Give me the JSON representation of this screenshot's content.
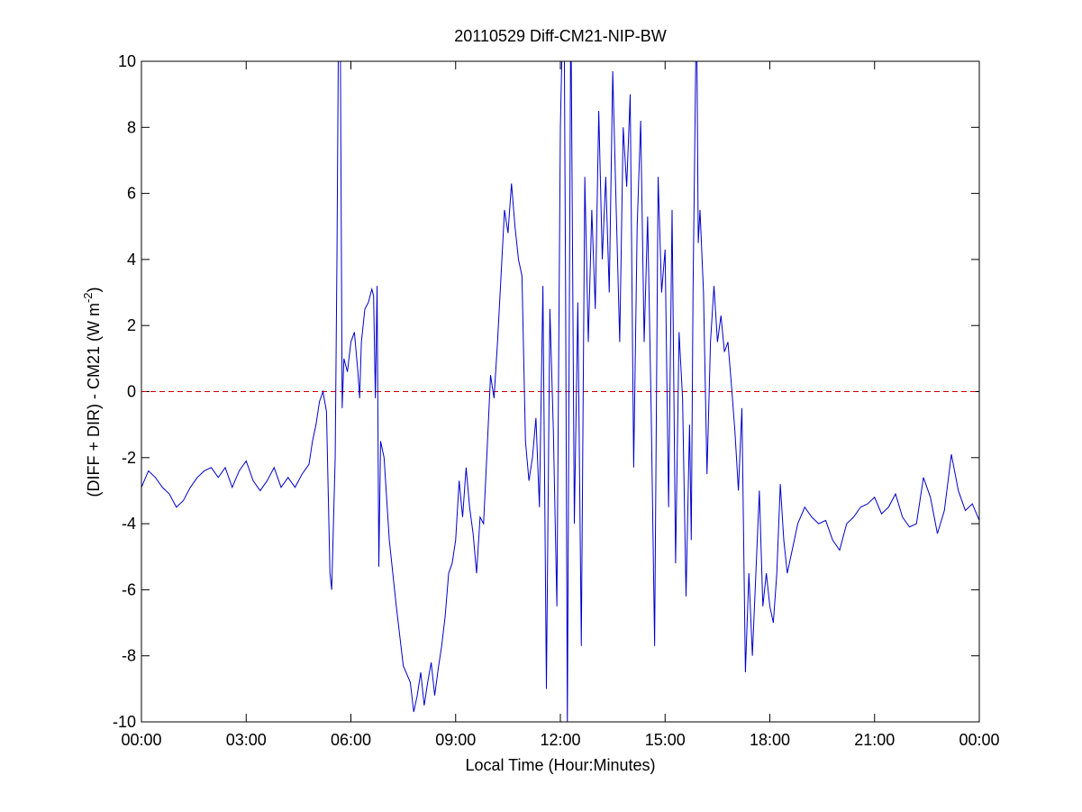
{
  "chart_data": {
    "type": "line",
    "title": "20110529 Diff-CM21-NIP-BW",
    "xlabel": "Local Time (Hour:Minutes)",
    "ylabel": {
      "text": "(DIFF + DIR) - CM21 (W m",
      "superscript": "-2",
      "end": ")"
    },
    "xlim": [
      0,
      24
    ],
    "ylim": [
      -10,
      10
    ],
    "xticks": [
      {
        "value": 0,
        "label": "00:00"
      },
      {
        "value": 3,
        "label": "03:00"
      },
      {
        "value": 6,
        "label": "06:00"
      },
      {
        "value": 9,
        "label": "09:00"
      },
      {
        "value": 12,
        "label": "12:00"
      },
      {
        "value": 15,
        "label": "15:00"
      },
      {
        "value": 18,
        "label": "18:00"
      },
      {
        "value": 21,
        "label": "21:00"
      },
      {
        "value": 24,
        "label": "00:00"
      }
    ],
    "yticks": [
      -10,
      -8,
      -6,
      -4,
      -2,
      0,
      2,
      4,
      6,
      8,
      10
    ],
    "reference_line": {
      "value": 0,
      "color": "#cc0000"
    },
    "series": [
      {
        "color": "#0000cc",
        "x": [
          0,
          0.2,
          0.4,
          0.6,
          0.8,
          1.0,
          1.2,
          1.4,
          1.6,
          1.8,
          2.0,
          2.2,
          2.4,
          2.6,
          2.8,
          3.0,
          3.2,
          3.4,
          3.6,
          3.8,
          4.0,
          4.2,
          4.4,
          4.6,
          4.8,
          4.9,
          5.0,
          5.1,
          5.2,
          5.3,
          5.4,
          5.45,
          5.55,
          5.6,
          5.65,
          5.7,
          5.75,
          5.8,
          5.9,
          6.0,
          6.1,
          6.2,
          6.25,
          6.3,
          6.4,
          6.5,
          6.6,
          6.65,
          6.7,
          6.75,
          6.8,
          6.85,
          6.95,
          7.1,
          7.3,
          7.5,
          7.7,
          7.8,
          7.9,
          8.0,
          8.1,
          8.2,
          8.3,
          8.4,
          8.5,
          8.6,
          8.7,
          8.8,
          8.9,
          9.0,
          9.1,
          9.2,
          9.3,
          9.4,
          9.5,
          9.6,
          9.7,
          9.8,
          9.9,
          10.0,
          10.1,
          10.2,
          10.3,
          10.4,
          10.5,
          10.6,
          10.7,
          10.8,
          10.9,
          11.0,
          11.1,
          11.2,
          11.3,
          11.4,
          11.5,
          11.6,
          11.7,
          11.8,
          11.9,
          12.0,
          12.1,
          12.15,
          12.2,
          12.3,
          12.4,
          12.5,
          12.6,
          12.7,
          12.8,
          12.9,
          13.0,
          13.1,
          13.2,
          13.3,
          13.4,
          13.5,
          13.6,
          13.7,
          13.8,
          13.9,
          14.0,
          14.1,
          14.2,
          14.3,
          14.4,
          14.5,
          14.6,
          14.7,
          14.8,
          14.9,
          15.0,
          15.1,
          15.2,
          15.3,
          15.4,
          15.5,
          15.6,
          15.7,
          15.75,
          15.8,
          15.9,
          15.95,
          16.0,
          16.1,
          16.2,
          16.3,
          16.4,
          16.5,
          16.6,
          16.7,
          16.8,
          16.9,
          17.0,
          17.1,
          17.2,
          17.3,
          17.4,
          17.5,
          17.6,
          17.7,
          17.8,
          17.9,
          18.0,
          18.1,
          18.2,
          18.3,
          18.4,
          18.5,
          18.6,
          18.8,
          19.0,
          19.2,
          19.4,
          19.6,
          19.8,
          20.0,
          20.2,
          20.4,
          20.6,
          20.8,
          21.0,
          21.2,
          21.4,
          21.6,
          21.8,
          22.0,
          22.2,
          22.4,
          22.6,
          22.8,
          23.0,
          23.2,
          23.4,
          23.6,
          23.8,
          24.0
        ],
        "values": [
          -2.9,
          -2.4,
          -2.6,
          -2.9,
          -3.1,
          -3.5,
          -3.3,
          -2.9,
          -2.6,
          -2.4,
          -2.3,
          -2.6,
          -2.3,
          -2.9,
          -2.4,
          -2.1,
          -2.7,
          -3.0,
          -2.7,
          -2.3,
          -2.9,
          -2.6,
          -2.9,
          -2.5,
          -2.2,
          -1.5,
          -1.0,
          -0.3,
          0.0,
          -0.6,
          -5.5,
          -6.0,
          -2.0,
          4.0,
          12.0,
          10.0,
          -0.5,
          1.0,
          0.6,
          1.5,
          1.8,
          0.6,
          -0.2,
          1.5,
          2.5,
          2.7,
          3.1,
          2.9,
          -0.2,
          3.2,
          -5.3,
          -1.5,
          -2.0,
          -4.5,
          -6.5,
          -8.3,
          -8.8,
          -9.7,
          -9.2,
          -8.5,
          -9.5,
          -8.8,
          -8.2,
          -9.2,
          -8.4,
          -7.7,
          -6.8,
          -5.5,
          -5.2,
          -4.5,
          -2.7,
          -3.8,
          -2.3,
          -3.5,
          -4.3,
          -5.5,
          -3.8,
          -4.0,
          -1.8,
          0.5,
          -0.2,
          1.5,
          3.5,
          5.5,
          4.8,
          6.3,
          5.0,
          4.0,
          3.5,
          -1.5,
          -2.7,
          -2.0,
          -0.8,
          -3.5,
          3.2,
          -9.0,
          2.5,
          -1.2,
          -6.5,
          8.0,
          13.0,
          3.0,
          -10.2,
          12.0,
          -4.0,
          2.7,
          -7.7,
          6.5,
          1.5,
          5.5,
          2.5,
          8.5,
          4.0,
          6.5,
          3.0,
          9.7,
          5.5,
          1.5,
          8.0,
          6.2,
          9.0,
          -2.3,
          5.0,
          8.2,
          1.5,
          5.3,
          -0.5,
          -7.7,
          6.5,
          3.0,
          4.3,
          -3.5,
          5.5,
          -5.2,
          1.8,
          -0.2,
          -6.2,
          -1.0,
          -4.5,
          3.0,
          12.0,
          4.5,
          5.5,
          3.0,
          -2.5,
          1.5,
          3.2,
          1.5,
          2.3,
          1.2,
          1.5,
          0.2,
          -1.2,
          -3.0,
          -0.5,
          -8.5,
          -5.5,
          -8.0,
          -5.5,
          -3.0,
          -6.5,
          -5.5,
          -6.5,
          -7.0,
          -5.5,
          -2.8,
          -4.5,
          -5.5,
          -5.0,
          -4.0,
          -3.5,
          -3.8,
          -4.0,
          -3.9,
          -4.5,
          -4.8,
          -4.0,
          -3.8,
          -3.5,
          -3.4,
          -3.2,
          -3.7,
          -3.5,
          -3.1,
          -3.8,
          -4.1,
          -4.0,
          -2.6,
          -3.2,
          -4.3,
          -3.6,
          -1.9,
          -3.0,
          -3.6,
          -3.4,
          -3.9
        ]
      }
    ]
  }
}
